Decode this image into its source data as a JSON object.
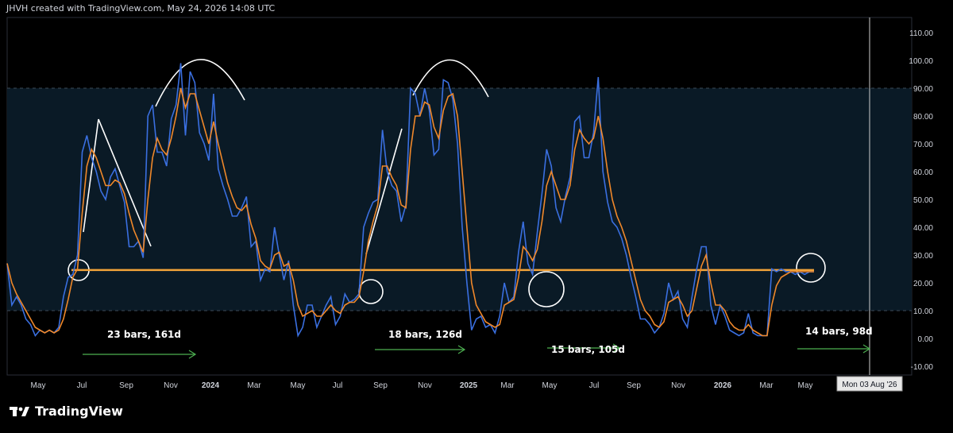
{
  "header": {
    "text": "JHVH created with TradingView.com, May 24, 2026 14:08 UTC"
  },
  "brand": {
    "name": "TradingView"
  },
  "colors": {
    "background": "#000000",
    "band": "#0a1a26",
    "blue": "#3a6fe0",
    "orange": "#f0882a",
    "level": "#f2a33a",
    "arrow": "#4caf50",
    "text": "#d1d4dc"
  },
  "crosshair_label": "Mon 03 Aug '26",
  "chart_data": {
    "type": "line",
    "ylim": [
      -13,
      115
    ],
    "yticks": [
      "110.00",
      "100.00",
      "90.00",
      "80.00",
      "70.00",
      "60.00",
      "50.00",
      "40.00",
      "30.00",
      "20.00",
      "10.00",
      "0.00",
      "-10.00"
    ],
    "ytick_values": [
      110,
      100,
      90,
      80,
      70,
      60,
      50,
      40,
      30,
      20,
      10,
      0,
      -10
    ],
    "xticks": [
      "May",
      "Jul",
      "Sep",
      "Nov",
      "2024",
      "Mar",
      "May",
      "Jul",
      "Sep",
      "Nov",
      "2025",
      "Mar",
      "May",
      "Jul",
      "Sep",
      "Nov",
      "2026",
      "Mar",
      "May"
    ],
    "xtick_bold": [
      false,
      false,
      false,
      false,
      true,
      false,
      false,
      false,
      false,
      false,
      true,
      false,
      false,
      false,
      false,
      false,
      true,
      false,
      false
    ],
    "band": [
      10,
      90
    ],
    "level": 24.6,
    "series": [
      {
        "name": "",
        "color": "#3a6fe0",
        "values": [
          27,
          12,
          15,
          12,
          7,
          5,
          1,
          3,
          2,
          3,
          2,
          4,
          15,
          22,
          23,
          30,
          67,
          73,
          65,
          60,
          53,
          50,
          58,
          61,
          55,
          49,
          33,
          33,
          35,
          29,
          80,
          84,
          67,
          67,
          62,
          79,
          84,
          99,
          73,
          96,
          92,
          74,
          70,
          64,
          88,
          61,
          55,
          50,
          44,
          44,
          47,
          51,
          33,
          35,
          21,
          25,
          24,
          40,
          30,
          21,
          28,
          12,
          1,
          4,
          12,
          12,
          4,
          8,
          12,
          15,
          5,
          8,
          16,
          13,
          14,
          16,
          40,
          45,
          49,
          50,
          75,
          60,
          55,
          53,
          42,
          48,
          90,
          88,
          80,
          90,
          82,
          66,
          68,
          93,
          92,
          86,
          70,
          40,
          20,
          3,
          7,
          8,
          4,
          5,
          2,
          8,
          20,
          13,
          15,
          31,
          42,
          27,
          23,
          38,
          52,
          68,
          62,
          47,
          42,
          51,
          58,
          78,
          80,
          65,
          65,
          74,
          94,
          60,
          49,
          42,
          40,
          36,
          30,
          22,
          15,
          7,
          7,
          5,
          2,
          4,
          9,
          20,
          14,
          17,
          7,
          4,
          15,
          25,
          33,
          33,
          12,
          5,
          12,
          8,
          3,
          2,
          1,
          2,
          9,
          2,
          1,
          1,
          1,
          25,
          24,
          25,
          24,
          24,
          23,
          24,
          23,
          24,
          24
        ]
      },
      {
        "name": "",
        "color": "#f0882a",
        "values": [
          27,
          20,
          16,
          13,
          10,
          7,
          4,
          3,
          2,
          3,
          2,
          3,
          7,
          14,
          22,
          25,
          45,
          62,
          68,
          65,
          60,
          55,
          55,
          57,
          56,
          52,
          45,
          39,
          35,
          31,
          50,
          65,
          72,
          68,
          66,
          72,
          80,
          90,
          83,
          88,
          88,
          82,
          76,
          70,
          78,
          70,
          63,
          56,
          51,
          47,
          46,
          48,
          41,
          36,
          28,
          26,
          25,
          30,
          31,
          26,
          27,
          21,
          12,
          8,
          9,
          10,
          8,
          8,
          10,
          12,
          10,
          9,
          12,
          13,
          13,
          15,
          24,
          35,
          42,
          48,
          62,
          62,
          58,
          55,
          48,
          47,
          68,
          80,
          80,
          85,
          84,
          76,
          72,
          82,
          87,
          88,
          80,
          60,
          40,
          20,
          12,
          9,
          6,
          5,
          4,
          5,
          12,
          13,
          14,
          22,
          33,
          31,
          28,
          32,
          42,
          55,
          60,
          55,
          50,
          50,
          55,
          68,
          75,
          72,
          70,
          72,
          80,
          72,
          60,
          50,
          44,
          40,
          35,
          28,
          21,
          14,
          10,
          8,
          5,
          4,
          6,
          13,
          14,
          15,
          12,
          8,
          10,
          18,
          26,
          30,
          20,
          12,
          12,
          10,
          6,
          4,
          3,
          3,
          5,
          3,
          2,
          1,
          1,
          12,
          19,
          22,
          23,
          24,
          24,
          24,
          24,
          24,
          24
        ]
      }
    ],
    "annotations": [
      {
        "text": "23 bars, 161d"
      },
      {
        "text": "18 bars, 126d"
      },
      {
        "text": "15 bars, 105d"
      },
      {
        "text": "14 bars, 98d"
      }
    ]
  }
}
